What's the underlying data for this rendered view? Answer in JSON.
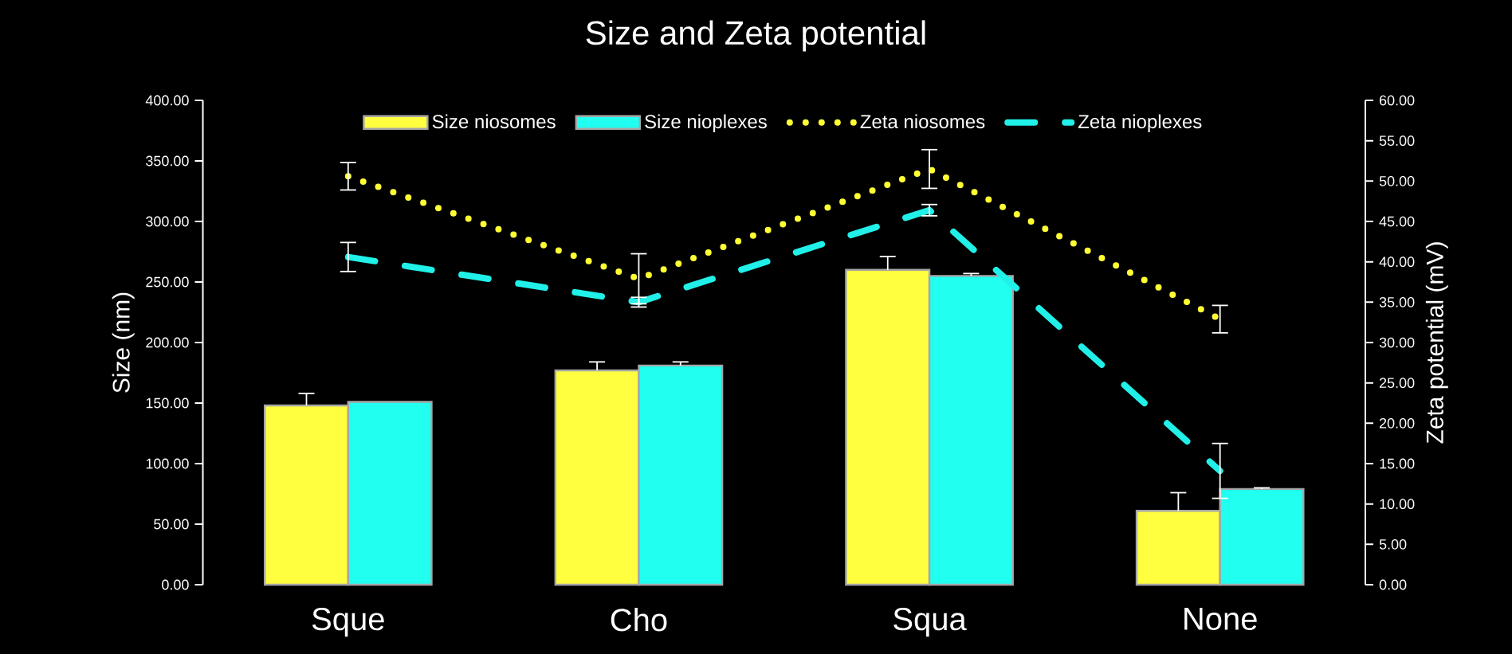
{
  "chart_data": {
    "type": "bar",
    "title": "Size and Zeta potential",
    "ylabel": "Size (nm)",
    "y2label": "Zeta potential (mV)",
    "categories": [
      "Sque",
      "Cho",
      "Squa",
      "None"
    ],
    "series": [
      {
        "name": "Size niosomes",
        "color": "#ffff40",
        "values": [
          148,
          177,
          260,
          61
        ],
        "errors": [
          [
            148,
            158
          ],
          [
            177,
            184
          ],
          [
            260,
            271
          ],
          [
            61,
            76
          ]
        ]
      },
      {
        "name": "Size nioplexes",
        "color": "#20fff0",
        "values": [
          151,
          181,
          255,
          79
        ],
        "errors": [
          null,
          [
            181,
            184
          ],
          [
            255,
            257
          ],
          [
            79,
            80
          ]
        ]
      },
      {
        "name": "Zeta niosomes",
        "type": "line",
        "axis": "y2",
        "line_style": "dotted",
        "color": "#ffff33",
        "values": [
          50.6,
          37.9,
          51.5,
          32.9
        ],
        "errors": [
          1.7,
          3.1,
          2.4,
          1.7
        ]
      },
      {
        "name": "Zeta nioplexes",
        "type": "line",
        "axis": "y2",
        "line_style": "dashed",
        "color": "#20f0e8",
        "values": [
          40.6,
          35.0,
          46.4,
          14.1
        ],
        "errors": [
          1.8,
          0.6,
          0.7,
          3.4
        ]
      }
    ],
    "ylim": [
      0,
      400
    ],
    "yticks": [
      {
        "value": 0,
        "label": "0.00"
      },
      {
        "value": 50,
        "label": "50.00"
      },
      {
        "value": 100,
        "label": "100.00"
      },
      {
        "value": 150,
        "label": "150.00"
      },
      {
        "value": 200,
        "label": "200.00"
      },
      {
        "value": 250,
        "label": "250.00"
      },
      {
        "value": 300,
        "label": "300.00"
      },
      {
        "value": 350,
        "label": "350.00"
      },
      {
        "value": 400,
        "label": "400.00"
      }
    ],
    "y2lim": [
      0,
      60
    ],
    "y2ticks": [
      {
        "value": 0,
        "label": "0.00"
      },
      {
        "value": 5,
        "label": "5.00"
      },
      {
        "value": 10,
        "label": "10.00"
      },
      {
        "value": 15,
        "label": "15.00"
      },
      {
        "value": 20,
        "label": "20.00"
      },
      {
        "value": 25,
        "label": "25.00"
      },
      {
        "value": 30,
        "label": "30.00"
      },
      {
        "value": 35,
        "label": "35.00"
      },
      {
        "value": 40,
        "label": "40.00"
      },
      {
        "value": 45,
        "label": "45.00"
      },
      {
        "value": 50,
        "label": "50.00"
      },
      {
        "value": 55,
        "label": "55.00"
      },
      {
        "value": 60,
        "label": "60.00"
      }
    ],
    "legend": "top"
  }
}
